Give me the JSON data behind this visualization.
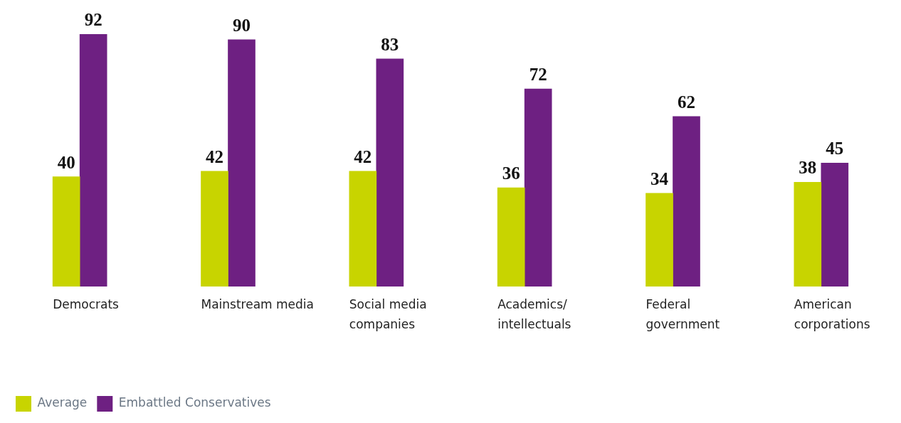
{
  "chart_data": {
    "type": "bar",
    "categories": [
      "Democrats",
      "Mainstream media",
      "Social media companies",
      "Academics/intellectuals",
      "Federal government",
      "American corporations"
    ],
    "series": [
      {
        "name": "Average",
        "color": "#c8d400",
        "values": [
          40,
          42,
          42,
          36,
          34,
          38
        ]
      },
      {
        "name": "Embattled Conservatives",
        "color": "#6e2082",
        "values": [
          92,
          90,
          83,
          72,
          62,
          45
        ]
      }
    ],
    "data_labels": true,
    "legend": "bottom left"
  }
}
